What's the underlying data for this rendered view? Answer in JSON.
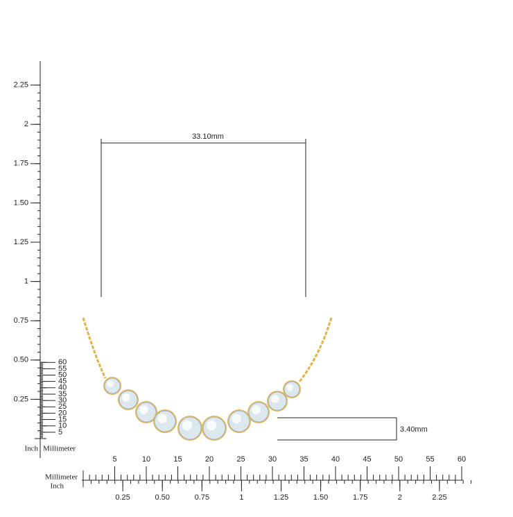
{
  "vertical_ruler": {
    "inch_label": "Inch",
    "mm_label": "Millimeter",
    "inch_ticks": [
      "0.25",
      "0.50",
      "0.75",
      "1",
      "1.25",
      "1.50",
      "1.75",
      "2",
      "2.25"
    ],
    "mm_ticks": [
      "5",
      "10",
      "15",
      "20",
      "25",
      "30",
      "35",
      "40",
      "45",
      "50",
      "55",
      "60"
    ]
  },
  "horizontal_ruler": {
    "mm_label": "Millimeter",
    "inch_label": "Inch",
    "mm_ticks": [
      "5",
      "10",
      "15",
      "20",
      "25",
      "30",
      "35",
      "40",
      "45",
      "50",
      "55",
      "60"
    ],
    "inch_ticks": [
      "0.25",
      "0.50",
      "0.75",
      "1",
      "1.25",
      "1.50",
      "1.75",
      "2",
      "2.25"
    ]
  },
  "dimensions": {
    "width": "33.10mm",
    "height": "3.40mm"
  }
}
